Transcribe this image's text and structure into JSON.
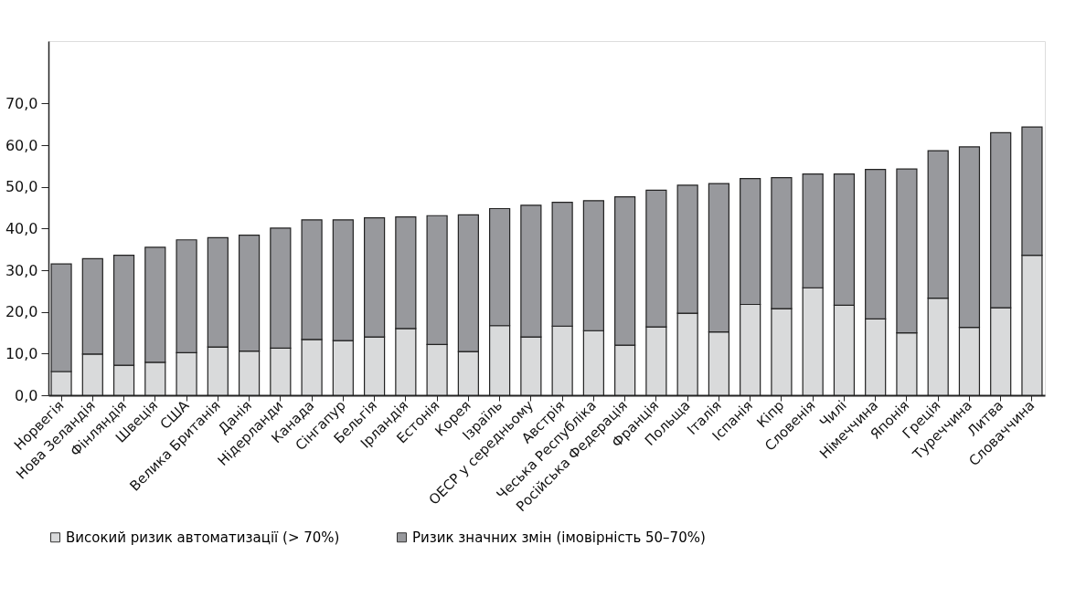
{
  "chart_data": {
    "type": "bar",
    "stacked": true,
    "legend": "bottom",
    "grid": false,
    "categories": [
      "Норвегія",
      "Нова Зеландія",
      "Фінляндія",
      "Швеція",
      "США",
      "Велика Британія",
      "Данія",
      "Нідерланди",
      "Канада",
      "Сінгапур",
      "Бельгія",
      "Ірландія",
      "Естонія",
      "Корея",
      "Ізраїль",
      "ОЕСР у середньому",
      "Австрія",
      "Чеська Республіка",
      "Російська Федерація",
      "Франція",
      "Польща",
      "Італія",
      "Іспанія",
      "Кіпр",
      "Словенія",
      "Чилі",
      "Німеччина",
      "Японія",
      "Греція",
      "Туреччина",
      "Литва",
      "Словаччина"
    ],
    "series": [
      {
        "name": "Високий ризик автоматизації (> 70%)",
        "color": "#d9dadb",
        "values": [
          5.7,
          9.9,
          7.2,
          7.9,
          10.2,
          11.6,
          10.6,
          11.3,
          13.4,
          13.1,
          14.0,
          16.0,
          12.2,
          10.5,
          16.7,
          14.0,
          16.6,
          15.5,
          12.0,
          16.4,
          19.7,
          15.2,
          21.8,
          20.8,
          25.8,
          21.6,
          18.3,
          15.0,
          23.3,
          16.3,
          21.0,
          33.6
        ]
      },
      {
        "name": "Ризик значних змін (імовірність 50–70%)",
        "color": "#98999d",
        "values": [
          25.8,
          22.9,
          26.4,
          27.6,
          27.1,
          26.2,
          27.8,
          28.8,
          28.7,
          29.0,
          28.6,
          26.8,
          30.9,
          32.8,
          28.1,
          31.6,
          29.7,
          31.2,
          35.6,
          32.8,
          30.7,
          35.6,
          30.2,
          31.4,
          27.3,
          31.5,
          35.9,
          39.3,
          35.4,
          43.3,
          42.0,
          30.8
        ]
      }
    ],
    "ylim": [
      0,
      85
    ],
    "yticks": [
      {
        "value": 0,
        "label": "0,0"
      },
      {
        "value": 10,
        "label": "10,0"
      },
      {
        "value": 20,
        "label": "20,0"
      },
      {
        "value": 30,
        "label": "30,0"
      },
      {
        "value": 40,
        "label": "40,0"
      },
      {
        "value": 50,
        "label": "50,0"
      },
      {
        "value": 60,
        "label": "60,0"
      },
      {
        "value": 70,
        "label": "70,0"
      }
    ]
  }
}
